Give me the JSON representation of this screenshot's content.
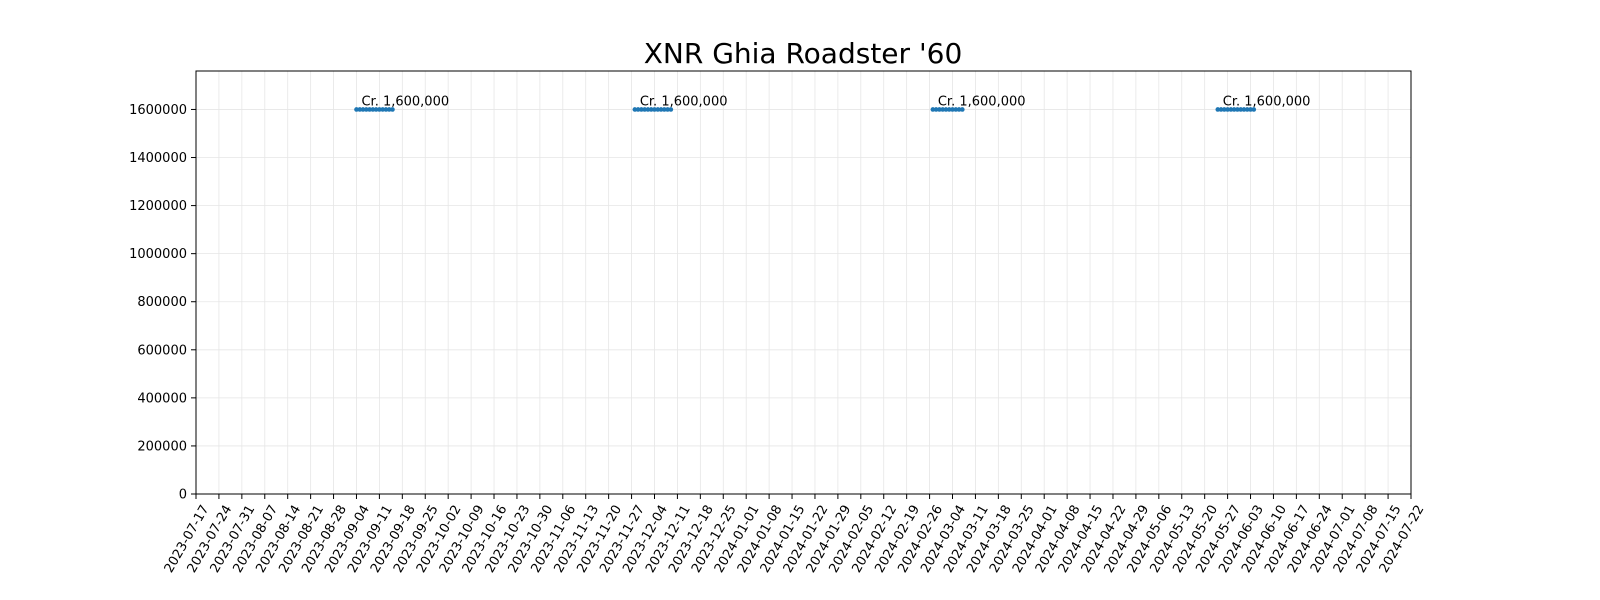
{
  "chart_data": {
    "type": "line",
    "title": "XNR Ghia Roadster '60",
    "xlabel": "",
    "ylabel": "",
    "grid": true,
    "line_color": "#1f77b4",
    "xlim": [
      "2023-07-17",
      "2024-07-22"
    ],
    "ylim": [
      0,
      1760000
    ],
    "x_ticks": [
      "2023-07-17",
      "2023-07-24",
      "2023-07-31",
      "2023-08-07",
      "2023-08-14",
      "2023-08-21",
      "2023-08-28",
      "2023-09-04",
      "2023-09-11",
      "2023-09-18",
      "2023-09-25",
      "2023-10-02",
      "2023-10-09",
      "2023-10-16",
      "2023-10-23",
      "2023-10-30",
      "2023-11-06",
      "2023-11-13",
      "2023-11-20",
      "2023-11-27",
      "2023-12-04",
      "2023-12-11",
      "2023-12-18",
      "2023-12-25",
      "2024-01-01",
      "2024-01-08",
      "2024-01-15",
      "2024-01-22",
      "2024-01-29",
      "2024-02-05",
      "2024-02-12",
      "2024-02-19",
      "2024-02-26",
      "2024-03-04",
      "2024-03-11",
      "2024-03-18",
      "2024-03-25",
      "2024-04-01",
      "2024-04-08",
      "2024-04-15",
      "2024-04-22",
      "2024-04-29",
      "2024-05-06",
      "2024-05-13",
      "2024-05-20",
      "2024-05-27",
      "2024-06-03",
      "2024-06-10",
      "2024-06-17",
      "2024-06-24",
      "2024-07-01",
      "2024-07-08",
      "2024-07-15",
      "2024-07-22"
    ],
    "y_ticks": [
      0,
      200000,
      400000,
      600000,
      800000,
      1000000,
      1200000,
      1400000,
      1600000
    ],
    "series": [
      {
        "segments": [
          {
            "x": [
              "2023-09-04",
              "2023-09-05",
              "2023-09-06",
              "2023-09-07",
              "2023-09-08",
              "2023-09-09",
              "2023-09-10",
              "2023-09-11",
              "2023-09-12",
              "2023-09-13",
              "2023-09-14",
              "2023-09-15"
            ],
            "y": [
              1600000,
              1600000,
              1600000,
              1600000,
              1600000,
              1600000,
              1600000,
              1600000,
              1600000,
              1600000,
              1600000,
              1600000
            ]
          },
          {
            "x": [
              "2023-11-28",
              "2023-11-29",
              "2023-11-30",
              "2023-12-01",
              "2023-12-02",
              "2023-12-03",
              "2023-12-04",
              "2023-12-05",
              "2023-12-06",
              "2023-12-07",
              "2023-12-08",
              "2023-12-09"
            ],
            "y": [
              1600000,
              1600000,
              1600000,
              1600000,
              1600000,
              1600000,
              1600000,
              1600000,
              1600000,
              1600000,
              1600000,
              1600000
            ]
          },
          {
            "x": [
              "2024-02-27",
              "2024-02-28",
              "2024-02-29",
              "2024-03-01",
              "2024-03-02",
              "2024-03-03",
              "2024-03-04",
              "2024-03-05",
              "2024-03-06",
              "2024-03-07"
            ],
            "y": [
              1600000,
              1600000,
              1600000,
              1600000,
              1600000,
              1600000,
              1600000,
              1600000,
              1600000,
              1600000
            ]
          },
          {
            "x": [
              "2024-05-24",
              "2024-05-25",
              "2024-05-26",
              "2024-05-27",
              "2024-05-28",
              "2024-05-29",
              "2024-05-30",
              "2024-05-31",
              "2024-06-01",
              "2024-06-02",
              "2024-06-03",
              "2024-06-04"
            ],
            "y": [
              1600000,
              1600000,
              1600000,
              1600000,
              1600000,
              1600000,
              1600000,
              1600000,
              1600000,
              1600000,
              1600000,
              1600000
            ]
          }
        ]
      }
    ],
    "annotations": [
      {
        "x": "2023-09-04",
        "y": 1600000,
        "text": "Cr. 1,600,000"
      },
      {
        "x": "2023-11-28",
        "y": 1600000,
        "text": "Cr. 1,600,000"
      },
      {
        "x": "2024-02-27",
        "y": 1600000,
        "text": "Cr. 1,600,000"
      },
      {
        "x": "2024-05-24",
        "y": 1600000,
        "text": "Cr. 1,600,000"
      }
    ]
  }
}
